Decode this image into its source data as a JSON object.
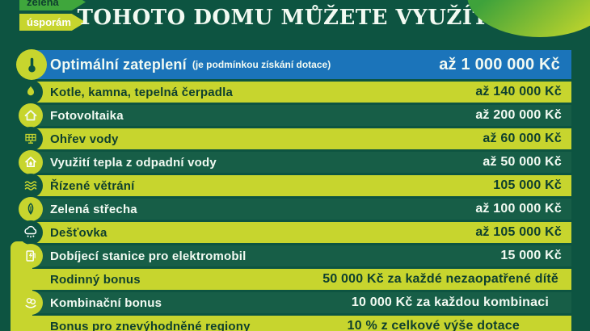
{
  "header": {
    "logo": {
      "line1": "zelená",
      "line2": "úsporám"
    },
    "title": "TOHOTO DOMU MŮŽETE VYUŽÍT"
  },
  "colors": {
    "bg": "#0d5441",
    "row_yellow": "#c7d52e",
    "row_blue": "#1b74ba",
    "row_green": "#175e47",
    "text_dark": "#0e3f2e",
    "text_light": "#f2faf2",
    "logo_green": "#3fa63c",
    "blob_from": "#3ea23b",
    "blob_to": "#b8d22d"
  },
  "rows": [
    {
      "icon": "thermometer-icon",
      "label": "Optimální zateplení",
      "note": "(je podmínkou získání dotace)",
      "amount": "až 1 000 000 Kč",
      "variant": "blue"
    },
    {
      "icon": "heating-boiler-icon",
      "label": "Kotle, kamna, tepelná čerpadla",
      "note": "",
      "amount": "až 140 000 Kč",
      "variant": "yellow"
    },
    {
      "icon": "house-icon",
      "label": "Fotovoltaika",
      "note": "",
      "amount": "až 200 000 Kč",
      "variant": "green"
    },
    {
      "icon": "solar-panel-icon",
      "label": "Ohřev vody",
      "note": "",
      "amount": "až 60 000 Kč",
      "variant": "yellow"
    },
    {
      "icon": "house-water-drop-icon",
      "label": "Využití tepla z odpadní vody",
      "note": "",
      "amount": "až 50 000 Kč",
      "variant": "green"
    },
    {
      "icon": "air-waves-icon",
      "label": "Řízené větrání",
      "note": "",
      "amount": "105 000 Kč",
      "variant": "yellow"
    },
    {
      "icon": "leaf-icon",
      "label": "Zelená střecha",
      "note": "",
      "amount": "až 100 000 Kč",
      "variant": "green"
    },
    {
      "icon": "rain-cloud-icon",
      "label": "Dešťovka",
      "note": "",
      "amount": "až 105 000 Kč",
      "variant": "yellow"
    },
    {
      "icon": "ev-charger-icon",
      "label": "Dobíjecí stanice pro elektromobil",
      "note": "",
      "amount": "15 000 Kč",
      "variant": "green"
    },
    {
      "icon": null,
      "label": "Rodinný bonus",
      "note": "",
      "amount": "50 000 Kč za každé nezaopatřené dítě",
      "variant": "yellow"
    },
    {
      "icon": "hand-coins-icon",
      "label": "Kombinační bonus",
      "note": "",
      "amount": "10 000 Kč za každou kombinaci",
      "variant": "green"
    },
    {
      "icon": null,
      "label": "Bonus pro znevýhodněné regiony",
      "note": "",
      "amount": "10 % z celkové výše dotace",
      "variant": "yellow"
    }
  ]
}
